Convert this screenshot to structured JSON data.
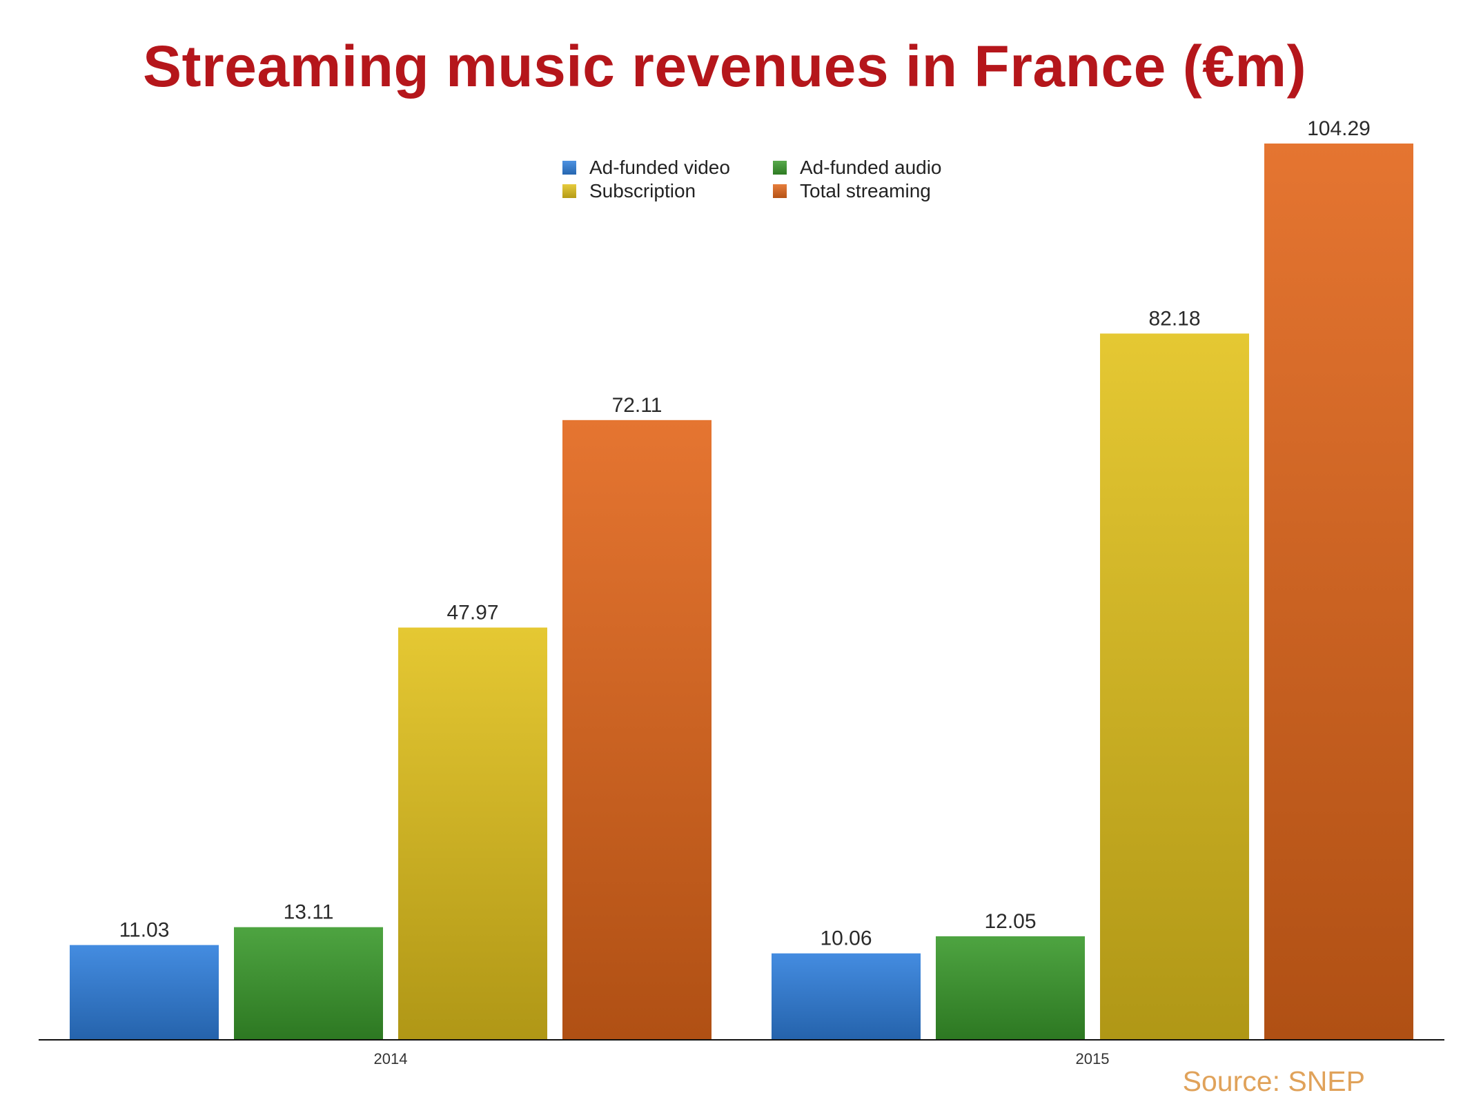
{
  "chart_data": {
    "type": "bar",
    "title": "Streaming music revenues in France (€m)",
    "categories": [
      "2014",
      "2015"
    ],
    "series": [
      {
        "name": "Ad-funded video",
        "values": [
          11.03,
          10.06
        ],
        "color": "#2f7fdc"
      },
      {
        "name": "Ad-funded audio",
        "values": [
          13.11,
          12.05
        ],
        "color": "#3a9a2c"
      },
      {
        "name": "Subscription",
        "values": [
          47.97,
          82.18
        ],
        "color": "#e2c21c"
      },
      {
        "name": "Total streaming",
        "values": [
          72.11,
          104.29
        ],
        "color": "#e2661a"
      }
    ],
    "xlabel": "",
    "ylabel": "",
    "ylim": [
      0,
      104.29
    ],
    "grid": false,
    "legend_placement": "top-center",
    "data_labels": [
      "11.03",
      "13.11",
      "47.97",
      "72.11",
      "10.06",
      "12.05",
      "82.18",
      "104.29"
    ],
    "source": "Source: SNEP"
  }
}
